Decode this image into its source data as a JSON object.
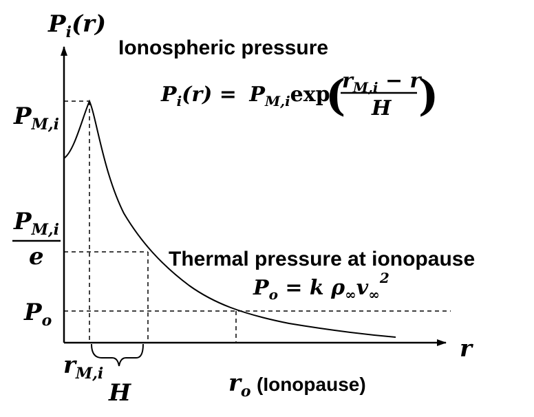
{
  "labels": {
    "y_axis_base": "P",
    "y_axis_sub": "i",
    "y_axis_arg": "(r)",
    "x_axis": "r",
    "pmi_base": "P",
    "pmi_sub": "M,i",
    "pmi_e_base": "P",
    "pmi_e_sub": "M,i",
    "pmi_e_den": "e",
    "po_base": "P",
    "po_sub": "o",
    "rmi_base": "r",
    "rmi_sub": "M,i",
    "h_label": "H",
    "ro_base": "r",
    "ro_sub": "o",
    "ro_text": "(Ionopause)"
  },
  "annotations": {
    "ionospheric_title": "Ionospheric pressure",
    "thermal_title": "Thermal pressure at ionopause"
  },
  "equations": {
    "ionospheric": {
      "lhs_base": "P",
      "lhs_sub": "i",
      "lhs_arg": "(r) =",
      "rhs_base": "P",
      "rhs_sub": "M,i",
      "func": "exp",
      "num_base": "r",
      "num_sub": "M,i",
      "num_rest": " − r",
      "den": "H"
    },
    "thermal": {
      "lhs_base": "P",
      "lhs_sub": "o",
      "eq": " = k ρ",
      "rho_sub": "∞",
      "v": "v",
      "v_sub": "∞",
      "exp": "2"
    }
  }
}
